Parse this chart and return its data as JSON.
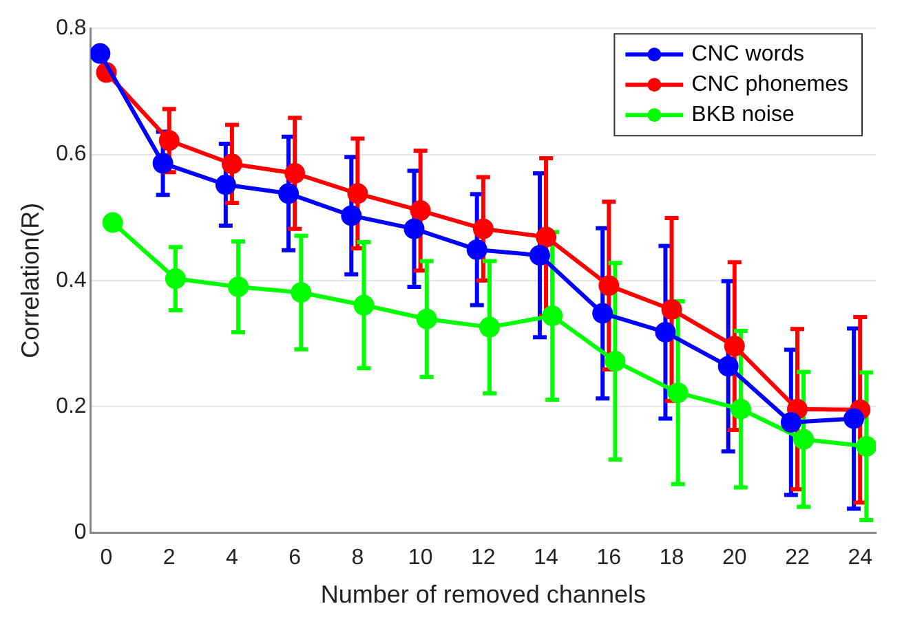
{
  "chart_data": {
    "type": "line",
    "xlabel": "Number of removed channels",
    "ylabel": "Correlation(R)",
    "xlim": [
      -0.5,
      24.5
    ],
    "xticks": [
      0,
      2,
      4,
      6,
      8,
      10,
      12,
      14,
      16,
      18,
      20,
      22,
      24
    ],
    "ylim": [
      0,
      0.8
    ],
    "yticks": [
      0,
      0.2,
      0.4,
      0.6,
      0.8
    ],
    "grid": "y",
    "legend": "top right",
    "marker": "circle",
    "series": [
      {
        "name": "CNC words",
        "color": "#0000ff",
        "x": [
          -0.2,
          1.8,
          3.8,
          5.8,
          7.8,
          9.8,
          11.8,
          13.8,
          15.8,
          17.8,
          19.8,
          21.8,
          23.8
        ],
        "values": [
          0.76,
          0.586,
          0.552,
          0.538,
          0.503,
          0.482,
          0.449,
          0.44,
          0.348,
          0.318,
          0.264,
          0.175,
          0.181
        ],
        "errors": [
          null,
          0.05,
          0.065,
          0.09,
          0.093,
          0.092,
          0.088,
          0.13,
          0.135,
          0.137,
          0.135,
          0.115,
          0.143
        ]
      },
      {
        "name": "CNC phonemes",
        "color": "#ff0000",
        "x": [
          0,
          2,
          4,
          6,
          8,
          10,
          12,
          14,
          16,
          18,
          20,
          22,
          24
        ],
        "values": [
          0.73,
          0.622,
          0.585,
          0.57,
          0.538,
          0.511,
          0.482,
          0.469,
          0.392,
          0.354,
          0.296,
          0.196,
          0.195
        ],
        "errors": [
          null,
          0.05,
          0.062,
          0.088,
          0.087,
          0.095,
          0.082,
          0.125,
          0.133,
          0.145,
          0.133,
          0.127,
          0.147
        ]
      },
      {
        "name": "BKB noise",
        "color": "#00ff00",
        "x": [
          0.2,
          2.2,
          4.2,
          6.2,
          8.2,
          10.2,
          12.2,
          14.2,
          16.2,
          18.2,
          20.2,
          22.2,
          24.2
        ],
        "values": [
          0.492,
          0.403,
          0.39,
          0.381,
          0.361,
          0.339,
          0.326,
          0.344,
          0.272,
          0.222,
          0.196,
          0.148,
          0.137
        ],
        "errors": [
          null,
          0.05,
          0.072,
          0.09,
          0.1,
          0.092,
          0.105,
          0.133,
          0.156,
          0.145,
          0.124,
          0.107,
          0.117
        ]
      }
    ]
  }
}
